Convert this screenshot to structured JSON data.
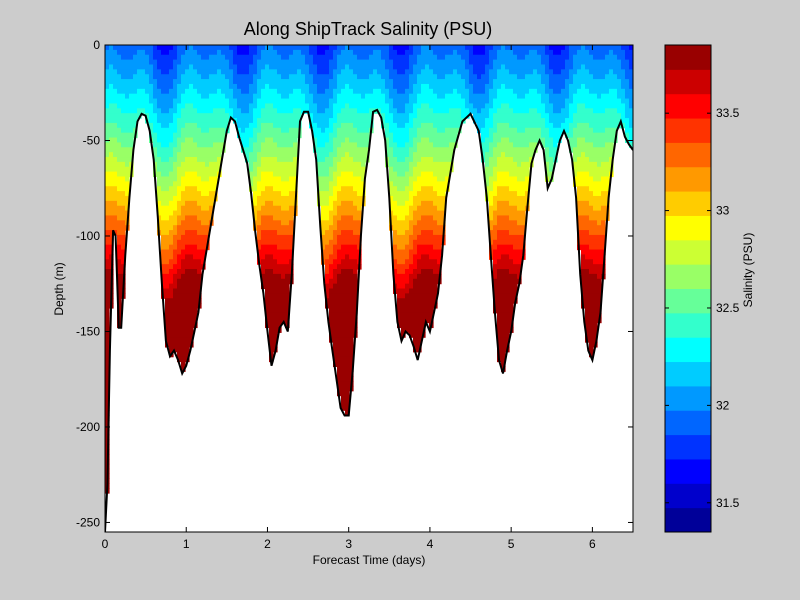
{
  "chart_data": {
    "type": "heatmap",
    "title": "Along ShipTrack Salinity (PSU)",
    "xlabel": "Forecast Time (days)",
    "ylabel": "Depth (m)",
    "xlim": [
      0,
      6.5
    ],
    "ylim": [
      -255,
      0
    ],
    "xticks": [
      0,
      1,
      2,
      3,
      4,
      5,
      6
    ],
    "yticks": [
      -250,
      -200,
      -150,
      -100,
      -50,
      0
    ],
    "colorbar": {
      "label": "Salinity (PSU)",
      "range": [
        31.35,
        33.85
      ],
      "ticks": [
        31.5,
        32,
        32.5,
        33,
        33.5
      ],
      "levels": 20,
      "colormap": "jet"
    },
    "bottom_depth": {
      "x": [
        0,
        0.03,
        0.06,
        0.1,
        0.13,
        0.17,
        0.2,
        0.25,
        0.3,
        0.35,
        0.4,
        0.45,
        0.5,
        0.55,
        0.6,
        0.65,
        0.7,
        0.75,
        0.8,
        0.85,
        0.9,
        0.95,
        1.0,
        1.05,
        1.1,
        1.15,
        1.2,
        1.3,
        1.4,
        1.5,
        1.55,
        1.6,
        1.65,
        1.7,
        1.75,
        1.8,
        1.85,
        1.9,
        1.95,
        2.0,
        2.05,
        2.1,
        2.15,
        2.2,
        2.25,
        2.3,
        2.35,
        2.4,
        2.45,
        2.5,
        2.55,
        2.6,
        2.65,
        2.7,
        2.75,
        2.8,
        2.85,
        2.9,
        2.95,
        3.0,
        3.05,
        3.1,
        3.15,
        3.2,
        3.25,
        3.3,
        3.35,
        3.4,
        3.45,
        3.5,
        3.55,
        3.6,
        3.65,
        3.7,
        3.75,
        3.8,
        3.85,
        3.9,
        3.95,
        4.0,
        4.05,
        4.1,
        4.15,
        4.2,
        4.3,
        4.4,
        4.5,
        4.6,
        4.65,
        4.7,
        4.75,
        4.8,
        4.85,
        4.9,
        4.95,
        5.0,
        5.05,
        5.1,
        5.15,
        5.2,
        5.25,
        5.3,
        5.35,
        5.4,
        5.45,
        5.5,
        5.55,
        5.6,
        5.65,
        5.7,
        5.75,
        5.8,
        5.85,
        5.9,
        5.95,
        6.0,
        6.05,
        6.1,
        6.15,
        6.2,
        6.25,
        6.3,
        6.35,
        6.4,
        6.45,
        6.5
      ],
      "depth": [
        -255,
        -230,
        -160,
        -97,
        -100,
        -148,
        -148,
        -110,
        -80,
        -55,
        -40,
        -36,
        -37,
        -45,
        -60,
        -90,
        -125,
        -155,
        -163,
        -160,
        -165,
        -172,
        -168,
        -160,
        -150,
        -140,
        -120,
        -95,
        -70,
        -45,
        -38,
        -40,
        -48,
        -55,
        -62,
        -78,
        -98,
        -115,
        -130,
        -150,
        -168,
        -160,
        -148,
        -145,
        -150,
        -120,
        -80,
        -40,
        -35,
        -35,
        -45,
        -60,
        -95,
        -125,
        -145,
        -160,
        -175,
        -190,
        -194,
        -194,
        -170,
        -140,
        -100,
        -70,
        -55,
        -35,
        -34,
        -38,
        -50,
        -80,
        -120,
        -145,
        -155,
        -150,
        -152,
        -158,
        -165,
        -155,
        -145,
        -150,
        -140,
        -130,
        -110,
        -80,
        -55,
        -40,
        -36,
        -45,
        -60,
        -80,
        -110,
        -140,
        -165,
        -172,
        -160,
        -150,
        -135,
        -125,
        -110,
        -85,
        -62,
        -55,
        -50,
        -55,
        -75,
        -70,
        -60,
        -50,
        -45,
        -50,
        -60,
        -80,
        -120,
        -145,
        -160,
        -165,
        -155,
        -140,
        -110,
        -80,
        -60,
        -45,
        -40,
        -48,
        -52,
        -55
      ]
    }
  }
}
